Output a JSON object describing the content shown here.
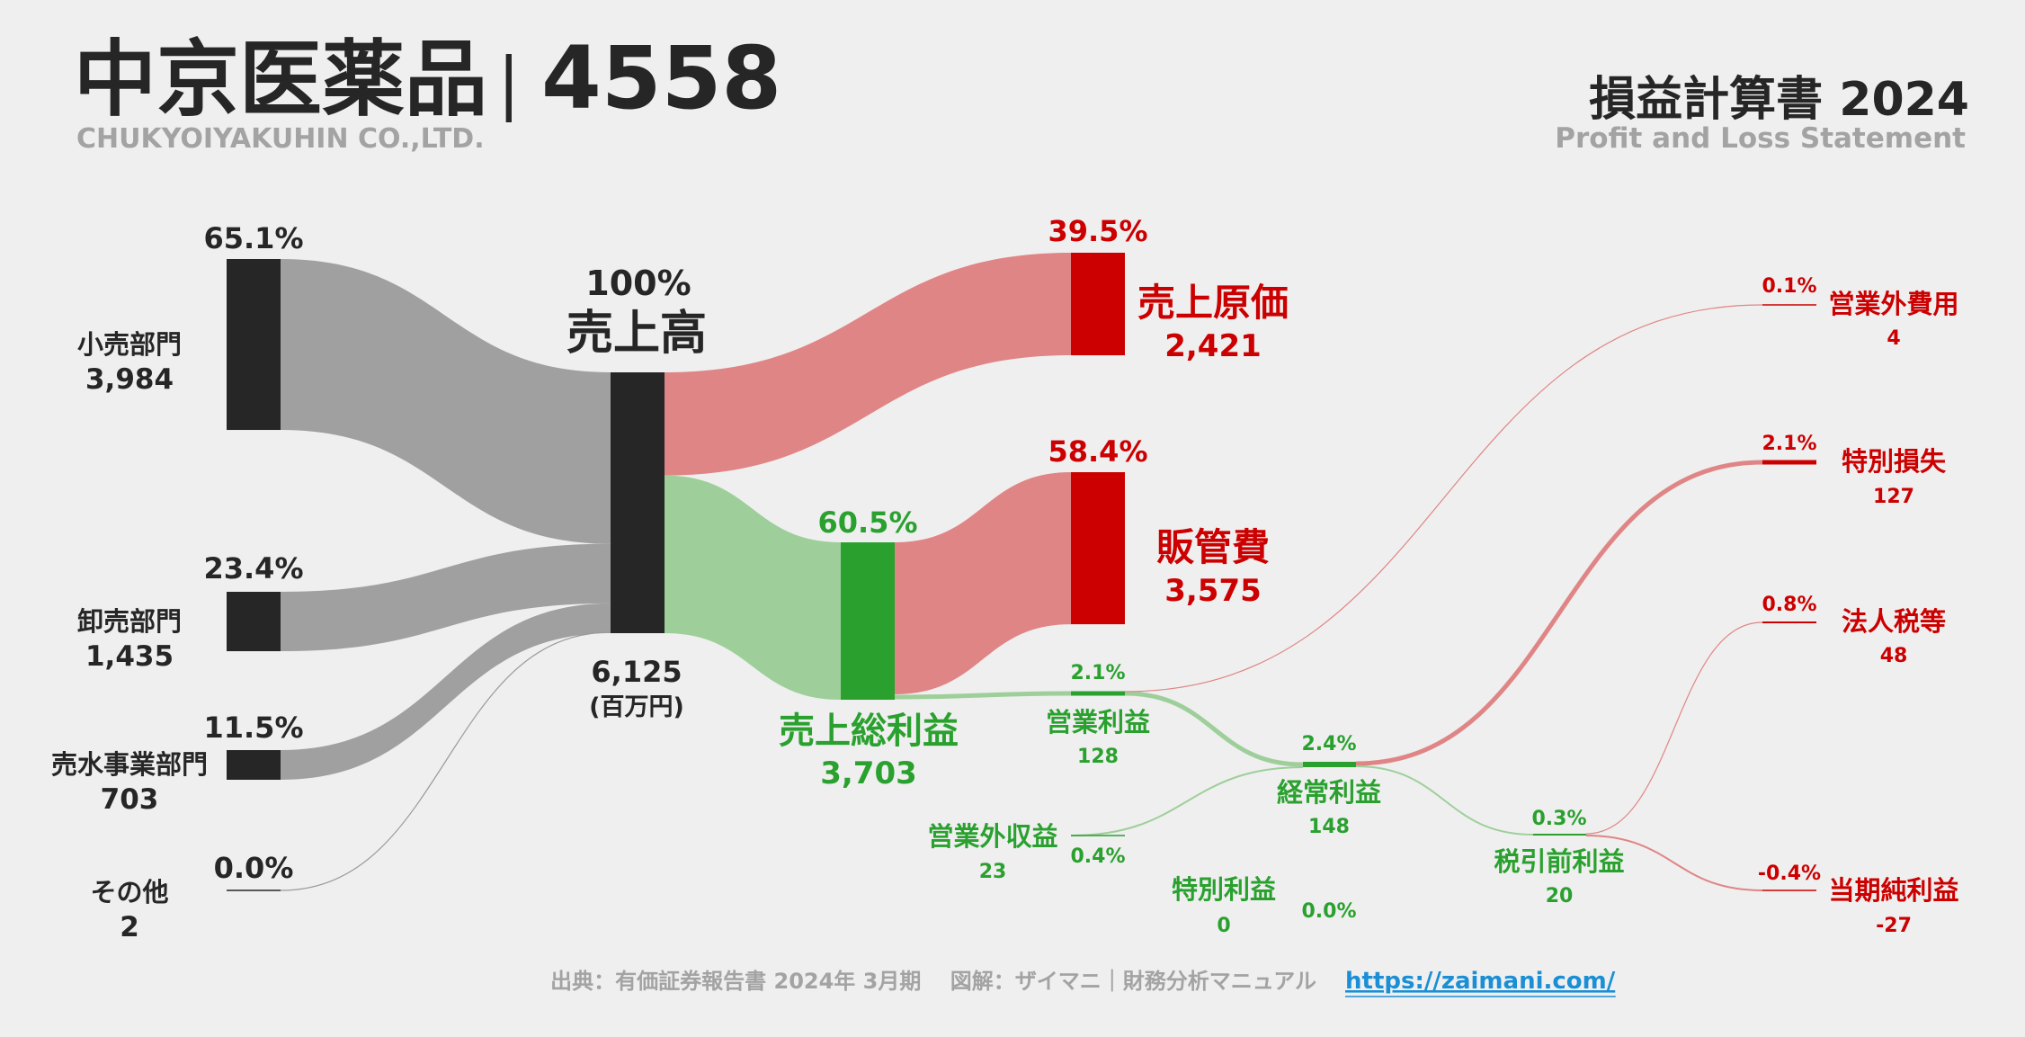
{
  "header": {
    "company_name": "中京医薬品",
    "separator": "|",
    "ticker": "4558",
    "company_name_en": "CHUKYOIYAKUHIN CO.,LTD.",
    "statement_title": "損益計算書 2024",
    "statement_subtitle": "Profit and Loss Statement"
  },
  "colors": {
    "dark": "#262626",
    "gray_flow": "#a0a0a0",
    "red": "#cc0000",
    "red_flow": "#e08585",
    "green": "#2aa12f",
    "green_flow": "#9ecf9a",
    "link_blue": "#1a8fd6"
  },
  "chart_data": {
    "type": "sankey",
    "unit": "(百万円)",
    "nodes": [
      {
        "id": "retail",
        "label": "小売部門",
        "value": 3984,
        "value_text": "3,984",
        "pct": "65.1%"
      },
      {
        "id": "wholesale",
        "label": "卸売部門",
        "value": 1435,
        "value_text": "1,435",
        "pct": "23.4%"
      },
      {
        "id": "water",
        "label": "売水事業部門",
        "value": 703,
        "value_text": "703",
        "pct": "11.5%"
      },
      {
        "id": "other",
        "label": "その他",
        "value": 2,
        "value_text": "2",
        "pct": "0.0%"
      },
      {
        "id": "revenue",
        "label": "売上高",
        "value": 6125,
        "value_text": "6,125",
        "pct": "100%"
      },
      {
        "id": "cogs",
        "label": "売上原価",
        "value": 2421,
        "value_text": "2,421",
        "pct": "39.5%"
      },
      {
        "id": "gross_profit",
        "label": "売上総利益",
        "value": 3703,
        "value_text": "3,703",
        "pct": "60.5%"
      },
      {
        "id": "sga",
        "label": "販管費",
        "value": 3575,
        "value_text": "3,575",
        "pct": "58.4%"
      },
      {
        "id": "operating_income",
        "label": "営業利益",
        "value": 128,
        "value_text": "128",
        "pct": "2.1%"
      },
      {
        "id": "non_op_income",
        "label": "営業外収益",
        "value": 23,
        "value_text": "23",
        "pct": "0.4%"
      },
      {
        "id": "non_op_expense",
        "label": "営業外費用",
        "value": 4,
        "value_text": "4",
        "pct": "0.1%"
      },
      {
        "id": "ordinary_income",
        "label": "経常利益",
        "value": 148,
        "value_text": "148",
        "pct": "2.4%"
      },
      {
        "id": "extra_gain",
        "label": "特別利益",
        "value": 0,
        "value_text": "0",
        "pct": "0.0%"
      },
      {
        "id": "extra_loss",
        "label": "特別損失",
        "value": 127,
        "value_text": "127",
        "pct": "2.1%"
      },
      {
        "id": "pretax_income",
        "label": "税引前利益",
        "value": 20,
        "value_text": "20",
        "pct": "0.3%"
      },
      {
        "id": "income_tax",
        "label": "法人税等",
        "value": 48,
        "value_text": "48",
        "pct": "0.8%"
      },
      {
        "id": "net_income",
        "label": "当期純利益",
        "value": -27,
        "value_text": "-27",
        "pct": "-0.4%"
      }
    ],
    "links": [
      {
        "source": "retail",
        "target": "revenue",
        "value": 3984
      },
      {
        "source": "wholesale",
        "target": "revenue",
        "value": 1435
      },
      {
        "source": "water",
        "target": "revenue",
        "value": 703
      },
      {
        "source": "other",
        "target": "revenue",
        "value": 2
      },
      {
        "source": "revenue",
        "target": "cogs",
        "value": 2421
      },
      {
        "source": "revenue",
        "target": "gross_profit",
        "value": 3703
      },
      {
        "source": "gross_profit",
        "target": "sga",
        "value": 3575
      },
      {
        "source": "gross_profit",
        "target": "operating_income",
        "value": 128
      },
      {
        "source": "operating_income",
        "target": "non_op_expense",
        "value": 4
      },
      {
        "source": "operating_income",
        "target": "ordinary_income",
        "value": 124
      },
      {
        "source": "non_op_income",
        "target": "ordinary_income",
        "value": 23
      },
      {
        "source": "ordinary_income",
        "target": "extra_loss",
        "value": 127
      },
      {
        "source": "ordinary_income",
        "target": "pretax_income",
        "value": 20
      },
      {
        "source": "pretax_income",
        "target": "income_tax",
        "value": 48
      },
      {
        "source": "pretax_income",
        "target": "net_income",
        "value": -27
      }
    ]
  },
  "footer": {
    "source": "出典：有価証券報告書 2024年 3月期　 図解：ザイマニ｜財務分析マニュアル",
    "url": "https://zaimani.com/"
  }
}
